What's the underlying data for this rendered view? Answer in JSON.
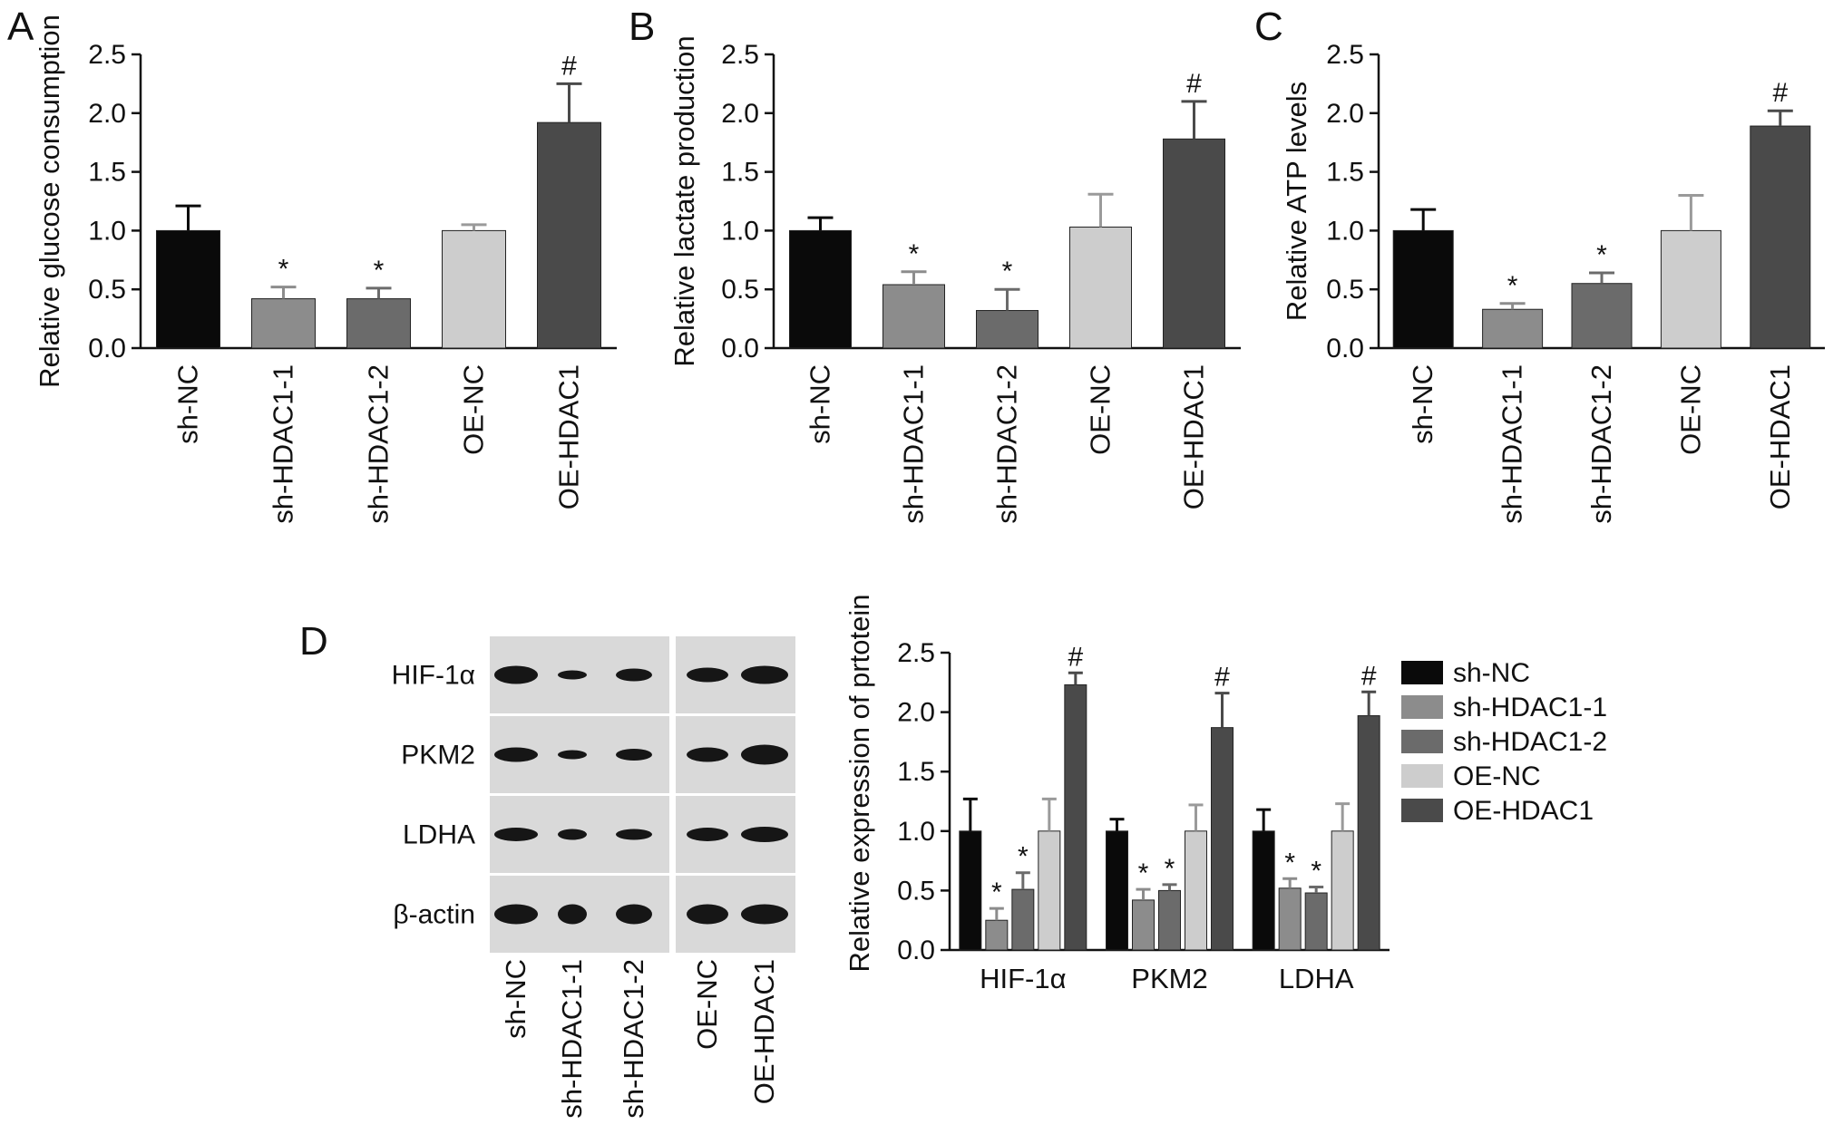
{
  "figure": {
    "colors": {
      "axis": "#111111",
      "sh-NC": "#0a0a0a",
      "sh-HDAC1-1": "#8c8c8c",
      "sh-HDAC1-2": "#6b6b6b",
      "OE-NC": "#cdcdcd",
      "OE-HDAC1": "#4a4a4a",
      "blot_bg": "#d9d9d9",
      "band": "#161616"
    },
    "panel_D_blot": {
      "letter": "D",
      "rows": [
        "HIF-1α",
        "PKM2",
        "LDHA",
        "β-actin"
      ],
      "lanes": [
        "sh-NC",
        "sh-HDAC1-1",
        "sh-HDAC1-2",
        "OE-NC",
        "OE-HDAC1"
      ]
    }
  },
  "chart_data": [
    {
      "panel": "A",
      "type": "bar",
      "categories": [
        "sh-NC",
        "sh-HDAC1-1",
        "sh-HDAC1-2",
        "OE-NC",
        "OE-HDAC1"
      ],
      "values": [
        1.0,
        0.42,
        0.42,
        1.0,
        1.92
      ],
      "errors": [
        0.21,
        0.1,
        0.09,
        0.05,
        0.33
      ],
      "marks": [
        "",
        "*",
        "*",
        "",
        "#"
      ],
      "ylabel": "Relative glucose consumption",
      "ylim": [
        0,
        2.5
      ],
      "yticks": [
        "0.0",
        "0.5",
        "1.0",
        "1.5",
        "2.0",
        "2.5"
      ]
    },
    {
      "panel": "B",
      "type": "bar",
      "categories": [
        "sh-NC",
        "sh-HDAC1-1",
        "sh-HDAC1-2",
        "OE-NC",
        "OE-HDAC1"
      ],
      "values": [
        1.0,
        0.54,
        0.32,
        1.03,
        1.78
      ],
      "errors": [
        0.11,
        0.11,
        0.18,
        0.28,
        0.32
      ],
      "marks": [
        "",
        "*",
        "*",
        "",
        "#"
      ],
      "ylabel": "Relative lactate production",
      "ylim": [
        0,
        2.5
      ],
      "yticks": [
        "0.0",
        "0.5",
        "1.0",
        "1.5",
        "2.0",
        "2.5"
      ]
    },
    {
      "panel": "C",
      "type": "bar",
      "categories": [
        "sh-NC",
        "sh-HDAC1-1",
        "sh-HDAC1-2",
        "OE-NC",
        "OE-HDAC1"
      ],
      "values": [
        1.0,
        0.33,
        0.55,
        1.0,
        1.89
      ],
      "errors": [
        0.18,
        0.05,
        0.09,
        0.3,
        0.13
      ],
      "marks": [
        "",
        "*",
        "*",
        "",
        "#"
      ],
      "ylabel": "Relative ATP levels",
      "ylim": [
        0,
        2.5
      ],
      "yticks": [
        "0.0",
        "0.5",
        "1.0",
        "1.5",
        "2.0",
        "2.5"
      ]
    },
    {
      "panel": "D",
      "type": "bar",
      "categories": [
        "HIF-1α",
        "PKM2",
        "LDHA"
      ],
      "series": [
        {
          "name": "sh-NC",
          "values": [
            1.0,
            1.0,
            1.0
          ],
          "errors": [
            0.27,
            0.1,
            0.18
          ],
          "marks": [
            "",
            "",
            ""
          ]
        },
        {
          "name": "sh-HDAC1-1",
          "values": [
            0.25,
            0.42,
            0.52
          ],
          "errors": [
            0.1,
            0.09,
            0.08
          ],
          "marks": [
            "*",
            "*",
            "*"
          ]
        },
        {
          "name": "sh-HDAC1-2",
          "values": [
            0.51,
            0.5,
            0.48
          ],
          "errors": [
            0.14,
            0.05,
            0.05
          ],
          "marks": [
            "*",
            "*",
            "*"
          ]
        },
        {
          "name": "OE-NC",
          "values": [
            1.0,
            1.0,
            1.0
          ],
          "errors": [
            0.27,
            0.22,
            0.23
          ],
          "marks": [
            "",
            "",
            ""
          ]
        },
        {
          "name": "OE-HDAC1",
          "values": [
            2.23,
            1.87,
            1.97
          ],
          "errors": [
            0.1,
            0.29,
            0.2
          ],
          "marks": [
            "#",
            "#",
            "#"
          ]
        }
      ],
      "ylabel": "Relative expression of prtotein",
      "ylim": [
        0,
        2.5
      ],
      "yticks": [
        "0.0",
        "0.5",
        "1.0",
        "1.5",
        "2.0",
        "2.5"
      ],
      "legend": "right"
    }
  ]
}
